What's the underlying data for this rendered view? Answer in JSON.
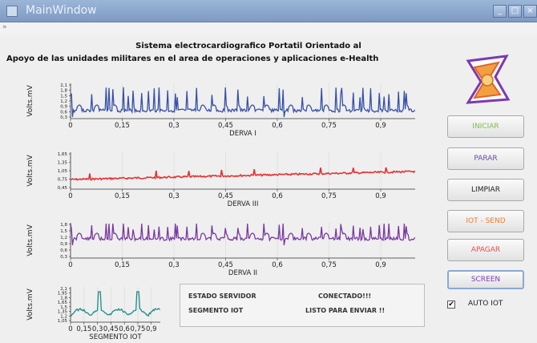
{
  "window": {
    "title": "MainWindow",
    "controls": [
      "_",
      "□",
      "×"
    ]
  },
  "menubar": {
    "text": "»"
  },
  "header": {
    "line1": "Sistema electrocardiografico Portatil Orientado al",
    "line2": "Apoyo de las unidades militares en el area de operaciones y aplicaciones e-Health"
  },
  "plots": [
    {
      "id": "derva1",
      "xlabel": "DERVA I",
      "ylabel": "Volts.mV",
      "color": "#3751a8",
      "yticks": [
        "2,1",
        "1,8",
        "1,5",
        "1,2",
        "0,9",
        "0,6",
        "0,3"
      ],
      "xticks": [
        "0",
        "0,15",
        "0,3",
        "0,45",
        "0,6",
        "0,75",
        "0,9"
      ],
      "xrange": [
        0,
        1.0
      ]
    },
    {
      "id": "derva3",
      "xlabel": "DERVA III",
      "ylabel": "Volts.mV",
      "color": "#e53233",
      "yticks": [
        "1,65",
        "1,35",
        "1,05",
        "0,75",
        "0,45"
      ],
      "xticks": [
        "0",
        "0,15",
        "0,3",
        "0,45",
        "0,6",
        "0,75",
        "0,9"
      ],
      "xrange": [
        0,
        1.0
      ]
    },
    {
      "id": "derva2",
      "xlabel": "DERVA II",
      "ylabel": "Volts.mV",
      "color": "#7a3aa0",
      "yticks": [
        "1,8",
        "1,5",
        "1,2",
        "0,9",
        "0,6",
        "0,3"
      ],
      "xticks": [
        "0",
        "0,15",
        "0,3",
        "0,45",
        "0,6",
        "0,75",
        "0,9"
      ],
      "xrange": [
        0,
        1.0
      ]
    },
    {
      "id": "segiot",
      "xlabel": "SEGMENTO IOT",
      "ylabel": "Volts.mV",
      "color": "#1b8c88",
      "yticks": [
        "2,1",
        "1,95",
        "1,8",
        "1,65",
        "1,5",
        "1,35",
        "1,2",
        "1,05"
      ],
      "xticks": [
        "0",
        "0,15",
        "0,3",
        "0,45",
        "0,6",
        "0,75",
        "0,9"
      ],
      "xrange": [
        0,
        1.0
      ]
    }
  ],
  "buttons": {
    "iniciar": "INICIAR",
    "parar": "PARAR",
    "limpiar": "LIMPIAR",
    "iot_send": "IOT - SEND",
    "apagar": "APAGAR",
    "screen": "SCREEN"
  },
  "auto_iot": {
    "label": "AUTO IOT",
    "checked": true,
    "check_mark": "✔"
  },
  "status": {
    "estado_label": "ESTADO SERVIDOR",
    "estado_value": "CONECTADO!!!",
    "segmento_label": "SEGMENTO IOT",
    "segmento_value": "LISTO PARA ENVIAR !!"
  }
}
